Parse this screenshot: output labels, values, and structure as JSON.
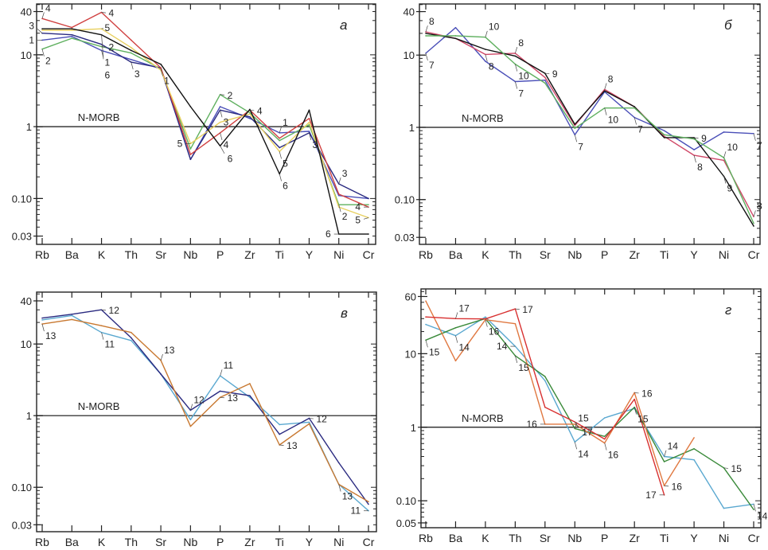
{
  "chart_data": [
    {
      "type": "line",
      "panel_label": "а",
      "categories": [
        "Rb",
        "Ba",
        "K",
        "Th",
        "Sr",
        "Nb",
        "P",
        "Zr",
        "Ti",
        "Y",
        "Ni",
        "Cr"
      ],
      "y_scale": "log",
      "ylim": [
        0.023,
        51
      ],
      "y_ticks": [
        {
          "v": 40,
          "label": "40"
        },
        {
          "v": 10,
          "label": "10"
        },
        {
          "v": 1,
          "label": "1"
        },
        {
          "v": 0.1,
          "label": "0.10"
        },
        {
          "v": 0.03,
          "label": "0.03"
        }
      ],
      "reference": {
        "label": "N-MORB",
        "value": 1
      },
      "series": [
        {
          "name": "1",
          "color": "#4a4fb8",
          "values": [
            16,
            18,
            11.5,
            8.6,
            6.4,
            0.35,
            1.9,
            1.3,
            0.82,
            0.86,
            0.11,
            0.1
          ],
          "labels": [
            {
              "text": "1",
              "cat": 0,
              "side": "left"
            },
            {
              "text": "1",
              "cat": 2,
              "side": "below"
            },
            {
              "text": "1",
              "cat": 4,
              "side": "below"
            },
            {
              "text": "1",
              "cat": 8,
              "side": "above"
            }
          ]
        },
        {
          "name": "2",
          "color": "#5fb05f",
          "values": [
            12,
            17,
            13,
            10.6,
            6.4,
            0.49,
            2.8,
            1.56,
            0.64,
            1.06,
            0.082,
            0.082
          ],
          "labels": [
            {
              "text": "2",
              "cat": 0,
              "side": "below"
            },
            {
              "text": "2",
              "cat": 2,
              "side": "right"
            },
            {
              "text": "2",
              "cat": 6,
              "side": "right"
            },
            {
              "text": "2",
              "cat": 10,
              "side": "below"
            }
          ]
        },
        {
          "name": "3",
          "color": "#2a2a80",
          "values": [
            20,
            19,
            14,
            7.9,
            6.6,
            0.35,
            1.7,
            1.37,
            0.51,
            0.82,
            0.16,
            0.1
          ],
          "labels": [
            {
              "text": "3",
              "cat": 0,
              "side": "left"
            },
            {
              "text": "3",
              "cat": 3,
              "side": "below"
            },
            {
              "text": "3",
              "cat": 6,
              "side": "below"
            },
            {
              "text": "3",
              "cat": 9,
              "side": "below"
            },
            {
              "text": "3",
              "cat": 10,
              "side": "above"
            }
          ]
        },
        {
          "name": "4",
          "color": "#d04040",
          "values": [
            32,
            24,
            39,
            16,
            6.6,
            0.41,
            0.82,
            1.7,
            0.69,
            1.3,
            0.115,
            0.076
          ],
          "labels": [
            {
              "text": "4",
              "cat": 0,
              "side": "above"
            },
            {
              "text": "4",
              "cat": 2,
              "side": "right"
            },
            {
              "text": "4",
              "cat": 6,
              "side": "below"
            },
            {
              "text": "4",
              "cat": 7,
              "side": "right"
            },
            {
              "text": "4",
              "cat": 11,
              "side": "left"
            }
          ]
        },
        {
          "name": "5",
          "color": "#e8d060",
          "values": [
            22,
            22,
            23,
            12.6,
            6.1,
            0.58,
            1.15,
            1.5,
            0.45,
            1.15,
            0.076,
            0.054
          ],
          "labels": [
            {
              "text": "5",
              "cat": 2,
              "side": "above"
            },
            {
              "text": "5",
              "cat": 5,
              "side": "left"
            },
            {
              "text": "5",
              "cat": 8,
              "side": "below"
            },
            {
              "text": "5",
              "cat": 11,
              "side": "left"
            }
          ]
        },
        {
          "name": "6",
          "color": "#111111",
          "values": [
            23,
            23,
            19,
            11.5,
            7.4,
            1.9,
            0.54,
            1.74,
            0.22,
            1.7,
            0.032,
            0.032
          ],
          "labels": [
            {
              "text": "6",
              "cat": 2,
              "side": "below"
            },
            {
              "text": "6",
              "cat": 6,
              "side": "right"
            },
            {
              "text": "6",
              "cat": 8,
              "side": "below"
            },
            {
              "text": "6",
              "cat": 10,
              "side": "left"
            }
          ]
        }
      ]
    },
    {
      "type": "line",
      "panel_label": "б",
      "categories": [
        "Rb",
        "Ba",
        "K",
        "Th",
        "Sr",
        "Nb",
        "P",
        "Zr",
        "Ti",
        "Y",
        "Ni",
        "Cr"
      ],
      "y_scale": "log",
      "ylim": [
        0.024,
        51
      ],
      "y_ticks": [
        {
          "v": 40,
          "label": "40"
        },
        {
          "v": 10,
          "label": "10"
        },
        {
          "v": 1,
          "label": "1"
        },
        {
          "v": 0.1,
          "label": "0.10"
        },
        {
          "v": 0.03,
          "label": "0.03"
        }
      ],
      "reference": {
        "label": "N-MORB",
        "value": 1
      },
      "series": [
        {
          "name": "7",
          "color": "#4a4fb8",
          "values": [
            10.6,
            24,
            8.2,
            4.3,
            4.5,
            0.79,
            3.1,
            1.37,
            0.9,
            0.49,
            0.86,
            0.82
          ],
          "labels": [
            {
              "text": "7",
              "cat": 0,
              "side": "below"
            },
            {
              "text": "7",
              "cat": 3,
              "side": "below"
            },
            {
              "text": "7",
              "cat": 5,
              "side": "below"
            },
            {
              "text": "7",
              "cat": 7,
              "side": "below"
            },
            {
              "text": "7",
              "cat": 11,
              "side": "below"
            }
          ]
        },
        {
          "name": "8",
          "color": "#d04868",
          "values": [
            21,
            17,
            10.2,
            10.6,
            4.9,
            1.06,
            3.35,
            1.93,
            0.75,
            0.41,
            0.35,
            0.058
          ],
          "labels": [
            {
              "text": "8",
              "cat": 0,
              "side": "above"
            },
            {
              "text": "8",
              "cat": 2,
              "side": "below"
            },
            {
              "text": "8",
              "cat": 3,
              "side": "above"
            },
            {
              "text": "8",
              "cat": 6,
              "side": "above"
            },
            {
              "text": "8",
              "cat": 9,
              "side": "below"
            },
            {
              "text": "8",
              "cat": 11,
              "side": "above"
            }
          ]
        },
        {
          "name": "9",
          "color": "#111111",
          "values": [
            20,
            17,
            12,
            9.7,
            5.6,
            1.1,
            3.2,
            1.93,
            0.72,
            0.72,
            0.21,
            0.043
          ],
          "labels": [
            {
              "text": "9",
              "cat": 4,
              "side": "right"
            },
            {
              "text": "9",
              "cat": 9,
              "side": "right"
            },
            {
              "text": "9",
              "cat": 10,
              "side": "below"
            }
          ]
        },
        {
          "name": "10",
          "color": "#5fb05f",
          "values": [
            18.5,
            18.5,
            17.7,
            7.5,
            4.1,
            0.97,
            1.85,
            1.85,
            0.79,
            0.69,
            0.38,
            0.047
          ],
          "labels": [
            {
              "text": "10",
              "cat": 2,
              "side": "above"
            },
            {
              "text": "10",
              "cat": 3,
              "side": "below"
            },
            {
              "text": "10",
              "cat": 6,
              "side": "below"
            },
            {
              "text": "10",
              "cat": 10,
              "side": "above"
            }
          ]
        }
      ]
    },
    {
      "type": "line",
      "panel_label": "в",
      "categories": [
        "Rb",
        "Ba",
        "K",
        "Th",
        "Sr",
        "Nb",
        "P",
        "Zr",
        "Ti",
        "Y",
        "Ni",
        "Cr"
      ],
      "y_scale": "log",
      "ylim": [
        0.024,
        53
      ],
      "y_ticks": [
        {
          "v": 40,
          "label": "40"
        },
        {
          "v": 10,
          "label": "10"
        },
        {
          "v": 1,
          "label": "1"
        },
        {
          "v": 0.1,
          "label": "0.10"
        },
        {
          "v": 0.03,
          "label": "0.03"
        }
      ],
      "reference": {
        "label": "N-MORB",
        "value": 1
      },
      "series": [
        {
          "name": "11",
          "color": "#5aa8d0",
          "values": [
            21.7,
            25,
            14.5,
            11.2,
            3.8,
            0.88,
            3.6,
            1.8,
            0.75,
            0.81,
            0.11,
            0.047
          ],
          "labels": [
            {
              "text": "11",
              "cat": 2,
              "side": "below"
            },
            {
              "text": "11",
              "cat": 6,
              "side": "above"
            },
            {
              "text": "11",
              "cat": 11,
              "side": "left"
            }
          ]
        },
        {
          "name": "12",
          "color": "#2a2a80",
          "values": [
            23,
            26,
            30,
            12.2,
            3.8,
            1.19,
            2.2,
            1.9,
            0.55,
            0.92,
            0.22,
            0.058
          ],
          "labels": [
            {
              "text": "12",
              "cat": 2,
              "side": "right"
            },
            {
              "text": "12",
              "cat": 5,
              "side": "above"
            },
            {
              "text": "12",
              "cat": 9,
              "side": "right"
            }
          ]
        },
        {
          "name": "13",
          "color": "#c87830",
          "values": [
            19,
            22,
            18,
            14.5,
            5.9,
            0.71,
            1.8,
            2.8,
            0.39,
            0.77,
            0.11,
            0.063
          ],
          "labels": [
            {
              "text": "13",
              "cat": 0,
              "side": "below"
            },
            {
              "text": "13",
              "cat": 4,
              "side": "above"
            },
            {
              "text": "13",
              "cat": 6,
              "side": "right"
            },
            {
              "text": "13",
              "cat": 8,
              "side": "right"
            },
            {
              "text": "13",
              "cat": 10,
              "side": "below"
            }
          ]
        }
      ]
    },
    {
      "type": "line",
      "panel_label": "г",
      "categories": [
        "Rb",
        "Ba",
        "K",
        "Th",
        "Sr",
        "Nb",
        "P",
        "Zr",
        "Ti",
        "Y",
        "Ni",
        "Cr"
      ],
      "y_scale": "log",
      "ylim": [
        0.043,
        76
      ],
      "y_ticks": [
        {
          "v": 60,
          "label": "60"
        },
        {
          "v": 10,
          "label": "10"
        },
        {
          "v": 1,
          "label": "1"
        },
        {
          "v": 0.1,
          "label": "0.10"
        },
        {
          "v": 0.05,
          "label": "0.05"
        }
      ],
      "reference": {
        "label": "N-MORB",
        "value": 1
      },
      "series": [
        {
          "name": "14",
          "color": "#5aa8d0",
          "values": [
            25,
            17.6,
            31.6,
            12.6,
            4.3,
            0.63,
            1.34,
            1.8,
            0.4,
            0.36,
            0.079,
            0.09
          ],
          "labels": [
            {
              "text": "14",
              "cat": 1,
              "side": "below"
            },
            {
              "text": "14",
              "cat": 3,
              "side": "left"
            },
            {
              "text": "14",
              "cat": 5,
              "side": "below"
            },
            {
              "text": "14",
              "cat": 8,
              "side": "above"
            },
            {
              "text": "14",
              "cat": 11,
              "side": "below"
            }
          ]
        },
        {
          "name": "15",
          "color": "#3a8a3a",
          "values": [
            15.3,
            22.5,
            30,
            9.4,
            4.9,
            0.96,
            0.75,
            1.87,
            0.34,
            0.51,
            0.28,
            0.076
          ],
          "labels": [
            {
              "text": "15",
              "cat": 0,
              "side": "below"
            },
            {
              "text": "15",
              "cat": 3,
              "side": "below"
            },
            {
              "text": "15",
              "cat": 5,
              "side": "above"
            },
            {
              "text": "15",
              "cat": 7,
              "side": "below"
            },
            {
              "text": "15",
              "cat": 10,
              "side": "right"
            }
          ]
        },
        {
          "name": "16",
          "color": "#e07840",
          "values": [
            52,
            8,
            29,
            25.6,
            1.1,
            1.1,
            0.61,
            2.95,
            0.16,
            0.72,
            null,
            null
          ],
          "labels": [
            {
              "text": "16",
              "cat": 2,
              "side": "below"
            },
            {
              "text": "16",
              "cat": 4,
              "side": "left"
            },
            {
              "text": "16",
              "cat": 6,
              "side": "below"
            },
            {
              "text": "16",
              "cat": 7,
              "side": "right"
            },
            {
              "text": "16",
              "cat": 8,
              "side": "right"
            }
          ]
        },
        {
          "name": "17",
          "color": "#d83030",
          "values": [
            31.6,
            30,
            29.7,
            40.7,
            1.87,
            1.18,
            0.69,
            2.4,
            0.12,
            null,
            null,
            null
          ],
          "labels": [
            {
              "text": "17",
              "cat": 1,
              "side": "above"
            },
            {
              "text": "17",
              "cat": 3,
              "side": "right"
            },
            {
              "text": "17",
              "cat": 5,
              "side": "right"
            },
            {
              "text": "17",
              "cat": 8,
              "side": "left"
            }
          ]
        }
      ]
    }
  ]
}
